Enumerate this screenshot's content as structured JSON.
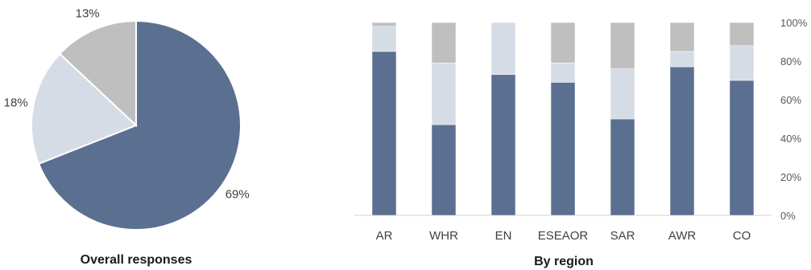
{
  "colors": {
    "series_1": "#5b7090",
    "series_2": "#d6dce6",
    "series_3": "#bfbfbf",
    "axis": "#d0d0d0",
    "background": "#ffffff"
  },
  "chart_data": [
    {
      "type": "pie",
      "caption": "Overall responses",
      "slices": [
        {
          "value": 69,
          "label": "69%",
          "color": "#5b7090"
        },
        {
          "value": 18,
          "label": "18%",
          "color": "#d6dce6"
        },
        {
          "value": 13,
          "label": "13%",
          "color": "#bfbfbf"
        }
      ]
    },
    {
      "type": "bar",
      "stacked": true,
      "percent": true,
      "caption": "By region",
      "categories": [
        "AR",
        "WHR",
        "EN",
        "ESEAOR",
        "SAR",
        "AWR",
        "CO"
      ],
      "series": [
        {
          "color": "#5b7090",
          "values": [
            85,
            47,
            73,
            69,
            50,
            77,
            70
          ]
        },
        {
          "color": "#d6dce6",
          "values": [
            13,
            32,
            27,
            10,
            26,
            8,
            18
          ]
        },
        {
          "color": "#bfbfbf",
          "values": [
            2,
            21,
            0,
            21,
            24,
            15,
            12
          ]
        }
      ],
      "ylim": [
        0,
        100
      ],
      "yticks": [
        "0%",
        "20%",
        "40%",
        "60%",
        "80%",
        "100%"
      ],
      "ytick_values": [
        0,
        20,
        40,
        60,
        80,
        100
      ],
      "grid": false,
      "y_axis_side": "right"
    }
  ]
}
